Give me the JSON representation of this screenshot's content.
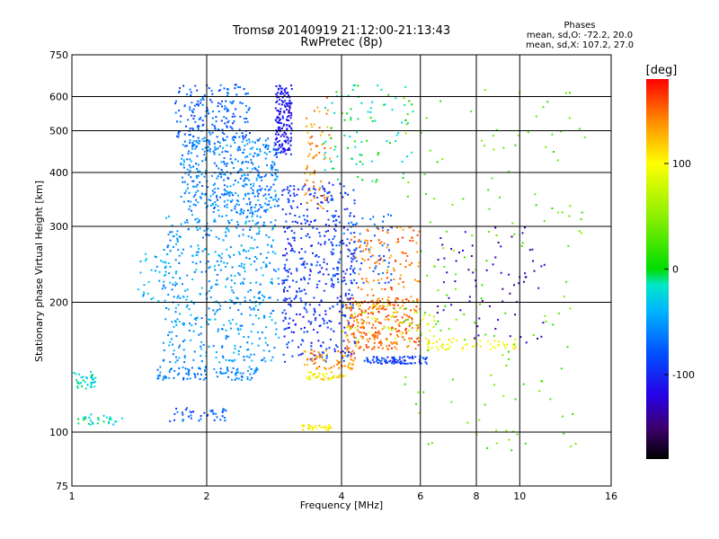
{
  "chart_data": {
    "type": "scatter",
    "title": "Tromsø 20140919 21:12:00-21:13:43",
    "subtitle": "RwPretec (8p)",
    "xlabel": "Frequency [MHz]",
    "ylabel": "Stationary phase Virtual Height [km]",
    "x_scale": "log",
    "y_scale": "log",
    "xlim": [
      1,
      16
    ],
    "ylim": [
      75,
      750
    ],
    "x_ticks": [
      "1",
      "2",
      "4",
      "6",
      "8",
      "10",
      "16"
    ],
    "y_ticks": [
      "75",
      "100",
      "200",
      "300",
      "400",
      "500",
      "600",
      "750"
    ],
    "grid": true,
    "phases_box": {
      "title": "Phases",
      "line_o": "mean, sd,O: -72.2, 20.0",
      "line_x": "mean, sd,X: 107.2, 27.0"
    },
    "colorbar": {
      "label": "[deg]",
      "ticks": [
        "100",
        "0",
        "-100"
      ],
      "tick_values": [
        100,
        0,
        -100
      ],
      "range": [
        -180,
        180
      ]
    },
    "point_clusters": [
      {
        "x": [
          1.0,
          1.13
        ],
        "h": [
          125,
          138
        ],
        "phase": -20,
        "n": 40
      },
      {
        "x": [
          1.0,
          1.32
        ],
        "h": [
          104,
          110
        ],
        "phase": -20,
        "n": 30
      },
      {
        "x": [
          1.4,
          1.62
        ],
        "h": [
          200,
          262
        ],
        "phase": -40,
        "n": 30
      },
      {
        "x": [
          1.55,
          2.6
        ],
        "h": [
          132,
          142
        ],
        "phase": -60,
        "n": 100
      },
      {
        "x": [
          1.65,
          2.25
        ],
        "h": [
          106,
          114
        ],
        "phase": -80,
        "n": 40
      },
      {
        "x": [
          1.6,
          2.9
        ],
        "h": [
          145,
          320
        ],
        "phase": -50,
        "n": 500
      },
      {
        "x": [
          1.75,
          2.9
        ],
        "h": [
          320,
          480
        ],
        "phase": -60,
        "n": 450
      },
      {
        "x": [
          1.7,
          2.5
        ],
        "h": [
          480,
          640
        ],
        "phase": -75,
        "n": 180
      },
      {
        "x": [
          2.85,
          3.1
        ],
        "h": [
          440,
          640
        ],
        "phase": -110,
        "n": 170
      },
      {
        "x": [
          2.95,
          4.3
        ],
        "h": [
          145,
          380
        ],
        "phase": -95,
        "n": 450
      },
      {
        "x": [
          3.3,
          4.3
        ],
        "h": [
          140,
          155
        ],
        "phase": 140,
        "n": 70
      },
      {
        "x": [
          3.3,
          4.1
        ],
        "h": [
          132,
          138
        ],
        "phase": 105,
        "n": 40
      },
      {
        "x": [
          3.25,
          3.8
        ],
        "h": [
          101,
          104
        ],
        "phase": 100,
        "n": 30
      },
      {
        "x": [
          3.3,
          3.8
        ],
        "h": [
          330,
          600
        ],
        "phase": 140,
        "n": 70
      },
      {
        "x": [
          4.1,
          6.0
        ],
        "h": [
          155,
          205
        ],
        "phase": 150,
        "n": 260
      },
      {
        "x": [
          4.2,
          6.0
        ],
        "h": [
          200,
          300
        ],
        "phase": 145,
        "n": 120
      },
      {
        "x": [
          4.5,
          6.2
        ],
        "h": [
          144,
          150
        ],
        "phase": -90,
        "n": 90
      },
      {
        "x": [
          4.0,
          6.5
        ],
        "h": [
          160,
          200
        ],
        "phase": 80,
        "n": 60
      },
      {
        "x": [
          3.8,
          5.2
        ],
        "h": [
          220,
          320
        ],
        "phase": -75,
        "n": 80
      },
      {
        "x": [
          3.6,
          5.8
        ],
        "h": [
          380,
          640
        ],
        "phase": -10,
        "n": 90
      },
      {
        "x": [
          6.2,
          9.8
        ],
        "h": [
          155,
          165
        ],
        "phase": 95,
        "n": 60
      },
      {
        "x": [
          6.5,
          11.5
        ],
        "h": [
          160,
          300
        ],
        "phase": -130,
        "n": 70
      },
      {
        "x": [
          5.5,
          14.0
        ],
        "h": [
          90,
          640
        ],
        "phase": 30,
        "n": 160
      }
    ]
  }
}
